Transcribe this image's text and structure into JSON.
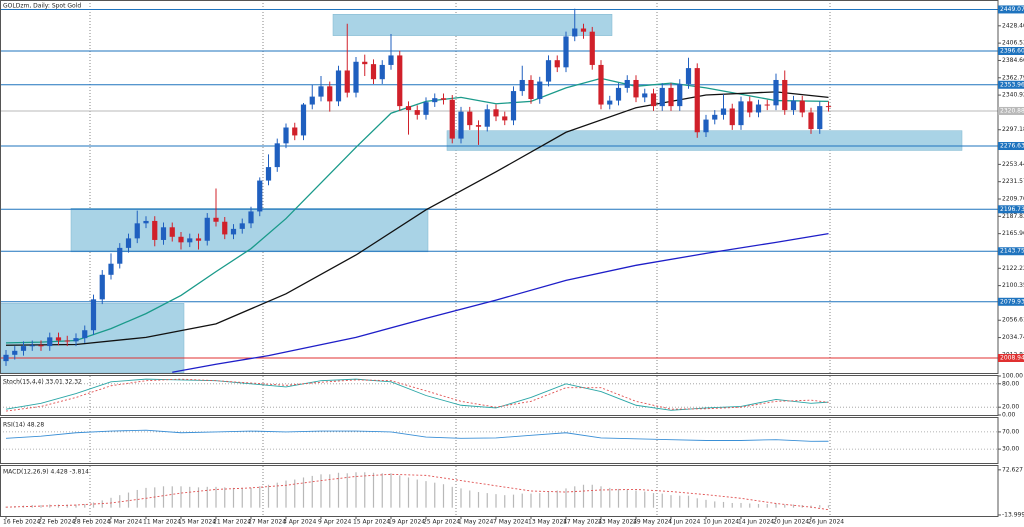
{
  "chart_data": [
    {
      "type": "candlestick",
      "title": "GOLDzm, Daily: Spot Gold",
      "categories": [
        "16 Feb 2024",
        null,
        null,
        null,
        "22 Feb 2024",
        null,
        null,
        null,
        "28 Feb 2024",
        null,
        null,
        null,
        "5 Mar 2024",
        null,
        null,
        null,
        "11 Mar 2024",
        null,
        null,
        null,
        "15 Mar 2024",
        null,
        null,
        null,
        "21 Mar 2024",
        null,
        null,
        null,
        "27 Mar 2024",
        null,
        null,
        null,
        "3 Apr 2024",
        null,
        null,
        null,
        "9 Apr 2024",
        null,
        null,
        null,
        "15 Apr 2024",
        null,
        null,
        null,
        "19 Apr 2024",
        null,
        null,
        null,
        "25 Apr 2024",
        null,
        null,
        null,
        "1 May 2024",
        null,
        null,
        null,
        "7 May 2024",
        null,
        null,
        null,
        "13 May 2024",
        null,
        null,
        null,
        "17 May 2024",
        null,
        null,
        null,
        "23 May 2024",
        null,
        null,
        null,
        "29 May 2024",
        null,
        null,
        null,
        "4 Jun 2024",
        null,
        null,
        null,
        "10 Jun 2024",
        null,
        null,
        null,
        "14 Jun 2024",
        null,
        null,
        null,
        "20 Jun 2024",
        null,
        null,
        null,
        "26 Jun 2024",
        null,
        null
      ],
      "open": [
        2005,
        2013,
        2018,
        2024,
        2025,
        2024,
        2035,
        2031,
        2030,
        2034,
        2044,
        2083,
        2114,
        2128,
        2148,
        2160,
        2179,
        2182,
        2158,
        2174,
        2162,
        2155,
        2160,
        2157,
        2186,
        2181,
        2165,
        2172,
        2179,
        2194,
        2233,
        2250,
        2280,
        2300,
        2290,
        2329,
        2339,
        2352,
        2333,
        2372,
        2344,
        2383,
        2380,
        2361,
        2379,
        2391,
        2327,
        2322,
        2316,
        2332,
        2337,
        2335,
        2286,
        2320,
        2303,
        2301,
        2323,
        2314,
        2309,
        2346,
        2360,
        2336,
        2358,
        2385,
        2376,
        2415,
        2425,
        2421,
        2379,
        2329,
        2334,
        2350,
        2360,
        2338,
        2343,
        2327,
        2350,
        2327,
        2355,
        2375,
        2294,
        2310,
        2316,
        2324,
        2303,
        2333,
        2319,
        2329,
        2328,
        2360,
        2322,
        2334,
        2319,
        2298,
        2327
      ],
      "high": [
        2019,
        2024,
        2030,
        2031,
        2031,
        2041,
        2041,
        2037,
        2040,
        2050,
        2089,
        2120,
        2141,
        2154,
        2166,
        2195,
        2188,
        2188,
        2180,
        2180,
        2168,
        2166,
        2166,
        2192,
        2223,
        2187,
        2178,
        2185,
        2200,
        2237,
        2266,
        2286,
        2305,
        2306,
        2331,
        2354,
        2365,
        2358,
        2378,
        2431,
        2389,
        2392,
        2386,
        2385,
        2418,
        2397,
        2333,
        2328,
        2338,
        2343,
        2343,
        2341,
        2326,
        2326,
        2309,
        2329,
        2329,
        2320,
        2352,
        2378,
        2366,
        2364,
        2391,
        2391,
        2421,
        2450,
        2431,
        2427,
        2385,
        2340,
        2356,
        2366,
        2366,
        2349,
        2349,
        2356,
        2356,
        2361,
        2388,
        2381,
        2316,
        2322,
        2342,
        2330,
        2339,
        2339,
        2335,
        2335,
        2368,
        2372,
        2340,
        2340,
        2325,
        2333,
        2333
      ],
      "low": [
        1999,
        2007,
        2012,
        2018,
        2018,
        2018,
        2025,
        2024,
        2024,
        2028,
        2038,
        2077,
        2108,
        2122,
        2142,
        2154,
        2173,
        2150,
        2152,
        2156,
        2146,
        2149,
        2146,
        2151,
        2175,
        2159,
        2159,
        2166,
        2173,
        2188,
        2227,
        2244,
        2274,
        2284,
        2284,
        2323,
        2333,
        2320,
        2327,
        2338,
        2338,
        2365,
        2355,
        2355,
        2373,
        2321,
        2291,
        2310,
        2310,
        2326,
        2329,
        2280,
        2280,
        2297,
        2278,
        2295,
        2308,
        2303,
        2303,
        2340,
        2330,
        2330,
        2352,
        2370,
        2370,
        2409,
        2412,
        2373,
        2323,
        2323,
        2328,
        2344,
        2332,
        2332,
        2321,
        2321,
        2321,
        2321,
        2349,
        2287,
        2288,
        2304,
        2310,
        2297,
        2297,
        2313,
        2313,
        2322,
        2322,
        2316,
        2316,
        2313,
        2292,
        2292,
        2320
      ],
      "close": [
        2013,
        2018,
        2024,
        2025,
        2024,
        2035,
        2031,
        2030,
        2034,
        2044,
        2083,
        2114,
        2128,
        2148,
        2160,
        2179,
        2182,
        2158,
        2174,
        2162,
        2155,
        2160,
        2157,
        2186,
        2181,
        2165,
        2172,
        2179,
        2194,
        2233,
        2250,
        2280,
        2300,
        2290,
        2329,
        2339,
        2352,
        2333,
        2372,
        2344,
        2383,
        2380,
        2361,
        2379,
        2391,
        2327,
        2322,
        2316,
        2332,
        2337,
        2335,
        2286,
        2320,
        2303,
        2301,
        2323,
        2314,
        2309,
        2346,
        2360,
        2336,
        2358,
        2385,
        2376,
        2415,
        2425,
        2421,
        2379,
        2329,
        2334,
        2350,
        2360,
        2338,
        2343,
        2327,
        2350,
        2327,
        2355,
        2375,
        2294,
        2310,
        2316,
        2324,
        2303,
        2333,
        2319,
        2329,
        2328,
        2360,
        2322,
        2334,
        2319,
        2298,
        2327,
        2326
      ],
      "up_color": "#1f5fbf",
      "down_color": "#d0202a",
      "ylim": [
        1990,
        2461
      ],
      "yticks": [
        {
          "value": 2428.4,
          "label": "2428.40"
        },
        {
          "value": 2406.53,
          "label": "2406.53"
        },
        {
          "value": 2384.66,
          "label": "2384.66"
        },
        {
          "value": 2362.79,
          "label": "2362.79"
        },
        {
          "value": 2340.92,
          "label": "2340.92"
        },
        {
          "value": 2297.18,
          "label": "2297.18"
        },
        {
          "value": 2253.44,
          "label": "2253.44"
        },
        {
          "value": 2231.57,
          "label": "2231.57"
        },
        {
          "value": 2209.7,
          "label": "2209.70"
        },
        {
          "value": 2187.83,
          "label": "2187.83"
        },
        {
          "value": 2165.96,
          "label": "2165.96"
        },
        {
          "value": 2122.22,
          "label": "2122.22"
        },
        {
          "value": 2100.35,
          "label": "2100.35"
        },
        {
          "value": 2056.61,
          "label": "2056.61"
        },
        {
          "value": 2034.74,
          "label": "2034.74"
        },
        {
          "value": 2012.87,
          "label": "2012.87"
        }
      ],
      "levels": [
        {
          "value": 2449.07,
          "label": "2449.07",
          "color": "#1e73be"
        },
        {
          "value": 2396.6,
          "label": "2396.60",
          "color": "#1e73be"
        },
        {
          "value": 2353.96,
          "label": "2353.96",
          "color": "#1e73be"
        },
        {
          "value": 2320.88,
          "label": "2320.88",
          "color": "#b8b8b8"
        },
        {
          "value": 2276.63,
          "label": "2276.63",
          "color": "#1e73be"
        },
        {
          "value": 2196.73,
          "label": "2196.73",
          "color": "#1e73be"
        },
        {
          "value": 2143.75,
          "label": "2143.75",
          "color": "#1e73be"
        },
        {
          "value": 2079.93,
          "label": "2079.93",
          "color": "#1e73be"
        },
        {
          "value": 2008.94,
          "label": "2008.94",
          "color": "#e03030"
        }
      ],
      "zones": [
        {
          "range": [
            2416,
            2443
          ]
        },
        {
          "range": [
            2271,
            2296
          ]
        },
        {
          "range": [
            2143,
            2198
          ]
        },
        {
          "range": [
            1990,
            2078
          ]
        }
      ],
      "zone_color": "#a9d3e6",
      "series": [
        {
          "color": "#1a9a8a",
          "x": [
            0,
            4,
            8,
            12,
            16,
            20,
            24,
            28,
            32,
            36,
            40,
            44,
            48,
            52,
            56,
            60,
            64,
            68,
            72,
            76,
            80,
            84,
            88,
            94
          ],
          "values": [
            2028,
            2029,
            2031,
            2046,
            2065,
            2088,
            2118,
            2147,
            2185,
            2230,
            2275,
            2318,
            2333,
            2338,
            2330,
            2333,
            2350,
            2362,
            2352,
            2356,
            2350,
            2342,
            2334,
            2333
          ]
        },
        {
          "color": "#111111",
          "x": [
            0,
            8,
            16,
            24,
            32,
            40,
            48,
            56,
            64,
            72,
            80,
            88,
            94
          ],
          "values": [
            2025,
            2026,
            2035,
            2052,
            2090,
            2139,
            2196,
            2244,
            2294,
            2325,
            2341,
            2345,
            2338
          ]
        },
        {
          "color": "#1e1ec8",
          "x": [
            19,
            24,
            30,
            40,
            48,
            56,
            64,
            72,
            80,
            88,
            94
          ],
          "values": [
            1991,
            2001,
            2012,
            2035,
            2059,
            2082,
            2107,
            2126,
            2141,
            2155,
            2166
          ]
        }
      ]
    },
    {
      "type": "line",
      "title": "Stoch(15,4,4) 33.01 32.32",
      "ylim": [
        0,
        100
      ],
      "yticks": [
        {
          "value": 100,
          "label": "100.00"
        },
        {
          "value": 80,
          "label": "80.00"
        },
        {
          "value": 20,
          "label": "20.00"
        },
        {
          "value": 0,
          "label": "0.00"
        }
      ],
      "levels": [
        80,
        20
      ],
      "series": [
        {
          "color": "#2aa6a6",
          "x": [
            0,
            4,
            8,
            12,
            16,
            20,
            24,
            28,
            32,
            36,
            40,
            44,
            48,
            52,
            56,
            60,
            64,
            68,
            72,
            76,
            80,
            84,
            88,
            92,
            94
          ],
          "values": [
            15,
            30,
            55,
            85,
            92,
            90,
            88,
            80,
            72,
            88,
            92,
            85,
            50,
            25,
            18,
            45,
            80,
            60,
            25,
            12,
            18,
            22,
            40,
            30,
            33.01
          ]
        },
        {
          "color": "#e05050",
          "dash": true,
          "x": [
            0,
            4,
            8,
            12,
            16,
            20,
            24,
            28,
            32,
            36,
            40,
            44,
            48,
            52,
            56,
            60,
            64,
            68,
            72,
            76,
            80,
            84,
            88,
            92,
            94
          ],
          "values": [
            10,
            22,
            45,
            75,
            88,
            92,
            88,
            82,
            76,
            84,
            90,
            88,
            62,
            35,
            20,
            35,
            70,
            70,
            35,
            15,
            16,
            20,
            35,
            38,
            32.32
          ]
        }
      ]
    },
    {
      "type": "line",
      "title": "RSI(14) 48.28",
      "ylim": [
        0,
        100
      ],
      "yticks": [
        {
          "value": 70,
          "label": "70.00"
        },
        {
          "value": 30,
          "label": "30.00"
        }
      ],
      "levels": [
        70,
        30
      ],
      "series": [
        {
          "color": "#3a8fd6",
          "x": [
            0,
            4,
            8,
            12,
            16,
            20,
            24,
            28,
            32,
            36,
            40,
            44,
            48,
            52,
            56,
            60,
            64,
            68,
            72,
            76,
            80,
            84,
            88,
            92,
            94
          ],
          "values": [
            55,
            60,
            68,
            72,
            74,
            68,
            70,
            72,
            70,
            72,
            72,
            70,
            58,
            55,
            56,
            62,
            68,
            56,
            54,
            52,
            50,
            50,
            52,
            48,
            48.28
          ]
        }
      ]
    },
    {
      "type": "macd",
      "title": "MACD(12,26,9) 4.428 -3.814",
      "ylim": [
        -16,
        80
      ],
      "yticks": [
        72.627,
        -13.999
      ],
      "bar_color": "#b8b8b8",
      "values": [
        2,
        3,
        4,
        5,
        5,
        6,
        6,
        6,
        6,
        7,
        10,
        14,
        19,
        24,
        29,
        34,
        38,
        39,
        41,
        41,
        41,
        40,
        39,
        40,
        40,
        39,
        38,
        38,
        38,
        41,
        44,
        48,
        52,
        54,
        58,
        61,
        64,
        64,
        67,
        66,
        68,
        68,
        67,
        66,
        66,
        62,
        58,
        54,
        51,
        48,
        45,
        40,
        37,
        33,
        30,
        28,
        26,
        24,
        25,
        27,
        27,
        28,
        31,
        33,
        37,
        41,
        44,
        44,
        41,
        38,
        36,
        35,
        33,
        31,
        28,
        27,
        24,
        23,
        23,
        18,
        15,
        12,
        11,
        9,
        9,
        8,
        7,
        7,
        8,
        6,
        6,
        5,
        4,
        5,
        4.428
      ],
      "series": [
        {
          "color": "#e05050",
          "dash": true,
          "x": [
            0,
            4,
            8,
            12,
            16,
            20,
            24,
            28,
            32,
            36,
            40,
            44,
            48,
            52,
            56,
            60,
            64,
            68,
            72,
            76,
            80,
            84,
            88,
            92,
            94
          ],
          "values": [
            1,
            3,
            5,
            9,
            18,
            28,
            35,
            38,
            43,
            52,
            60,
            64,
            62,
            52,
            42,
            32,
            30,
            34,
            35,
            31,
            25,
            18,
            8,
            1,
            -3.814
          ]
        }
      ]
    }
  ]
}
